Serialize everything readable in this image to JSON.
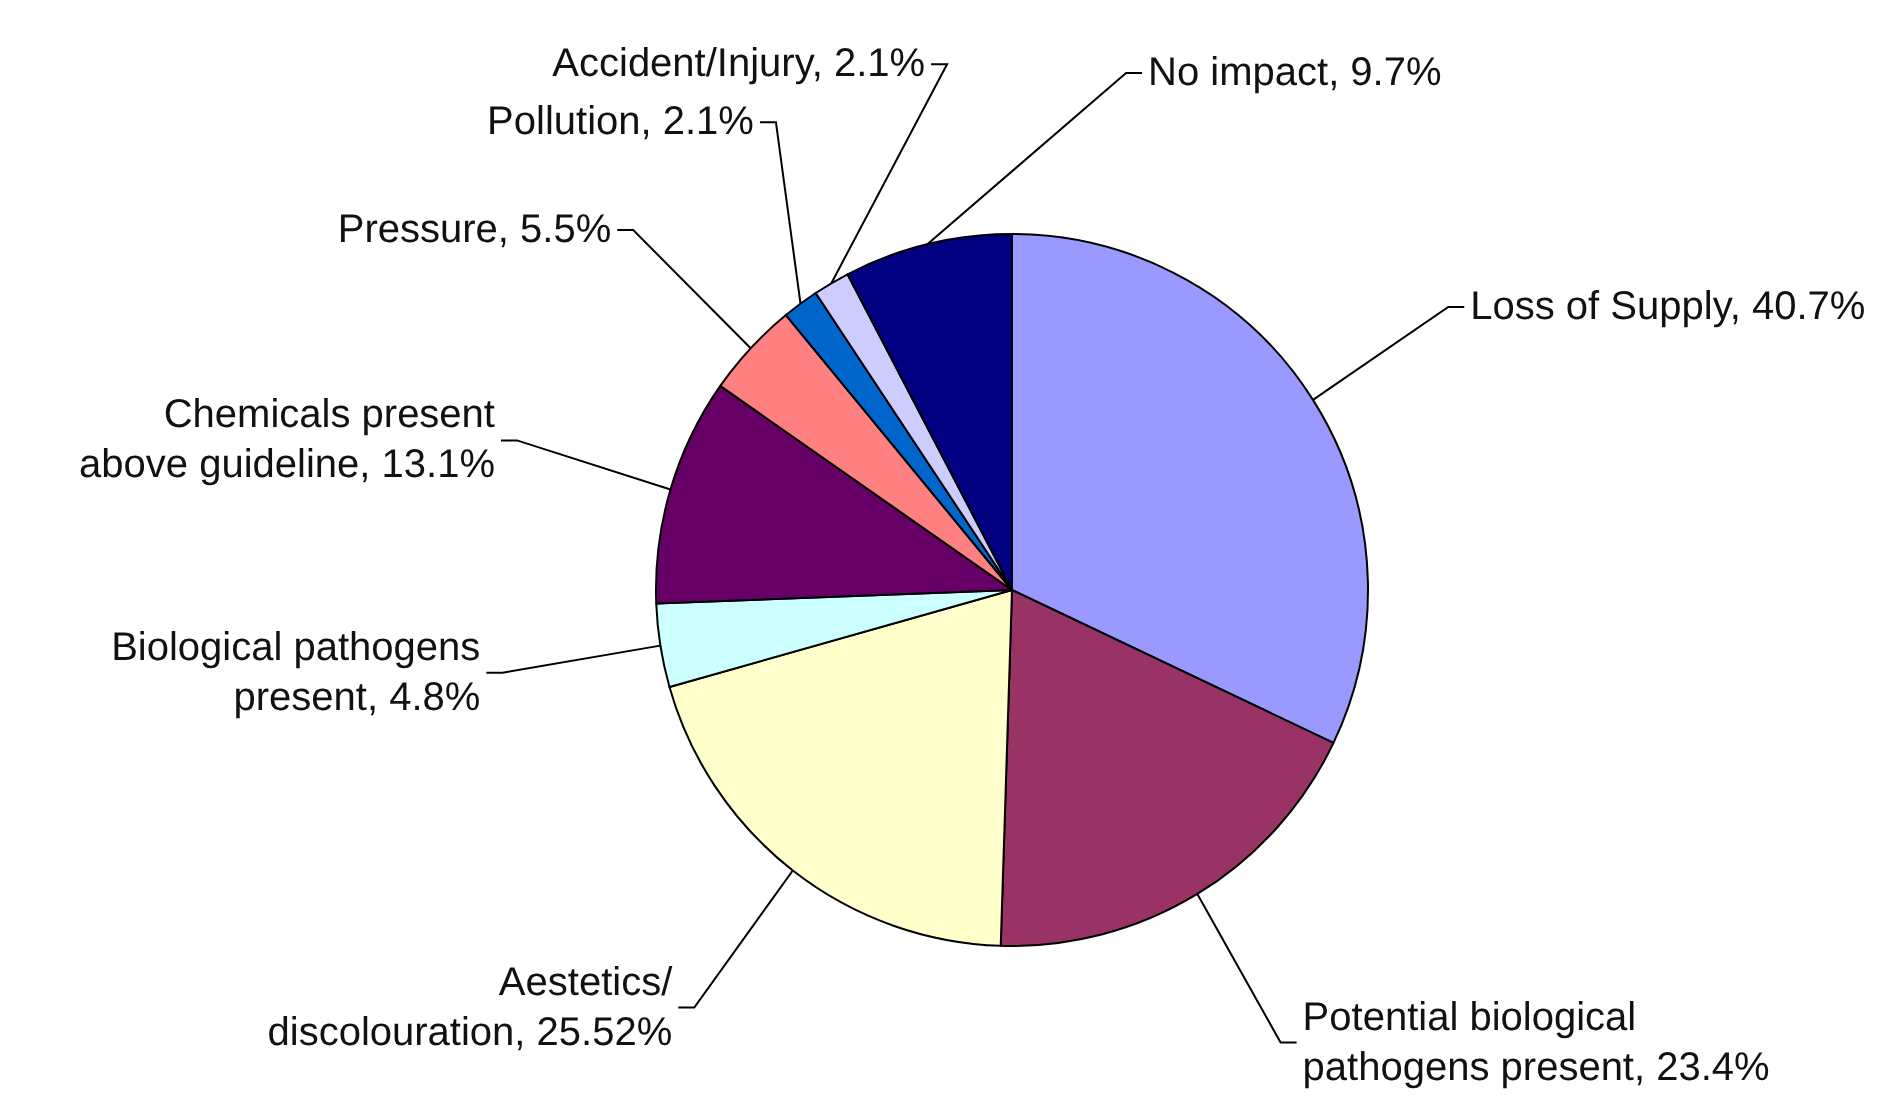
{
  "chart_data": {
    "type": "pie",
    "categories": [
      "Loss of Supply",
      "Potential biological\npathogens present",
      "Aestetics/\ndiscolouration",
      "Biological pathogens\npresent",
      "Chemicals present\nabove guideline",
      "Pressure",
      "Pollution",
      "Accident/Injury",
      "No impact"
    ],
    "values": [
      40.7,
      23.4,
      25.52,
      4.8,
      13.1,
      5.5,
      2.1,
      2.1,
      9.7
    ],
    "value_labels": [
      "40.7%",
      "23.4%",
      "25.52%",
      "4.8%",
      "13.1%",
      "5.5%",
      "2.1%",
      "2.1%",
      "9.7%"
    ],
    "colors": [
      "#9999ff",
      "#993366",
      "#ffffcc",
      "#ccffff",
      "#660066",
      "#ff8080",
      "#0066cc",
      "#ccccff",
      "#000080"
    ]
  }
}
